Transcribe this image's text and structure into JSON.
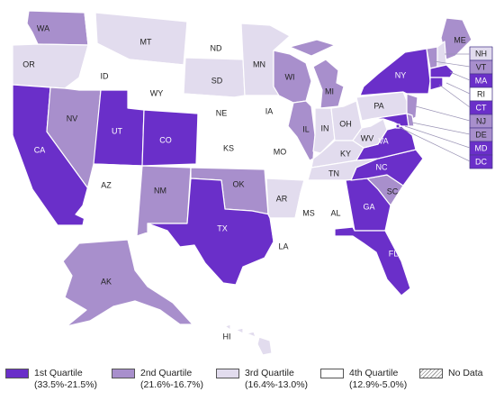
{
  "colors": {
    "q1": "#6a2fc9",
    "q2": "#a88fcc",
    "q3": "#e2dcee",
    "q4": "#ffffff",
    "border": "#9a93b5"
  },
  "states": {
    "WA": {
      "label": "WA",
      "q": "q2"
    },
    "OR": {
      "label": "OR",
      "q": "q3"
    },
    "CA": {
      "label": "CA",
      "q": "q1"
    },
    "ID": {
      "label": "ID",
      "q": "q4"
    },
    "NV": {
      "label": "NV",
      "q": "q2"
    },
    "MT": {
      "label": "MT",
      "q": "q3"
    },
    "WY": {
      "label": "WY",
      "q": "q4"
    },
    "UT": {
      "label": "UT",
      "q": "q1"
    },
    "AZ": {
      "label": "AZ",
      "q": "q4"
    },
    "CO": {
      "label": "CO",
      "q": "q1"
    },
    "NM": {
      "label": "NM",
      "q": "q2"
    },
    "ND": {
      "label": "ND",
      "q": "q4"
    },
    "SD": {
      "label": "SD",
      "q": "q3"
    },
    "NE": {
      "label": "NE",
      "q": "q4"
    },
    "KS": {
      "label": "KS",
      "q": "q4"
    },
    "OK": {
      "label": "OK",
      "q": "q2"
    },
    "TX": {
      "label": "TX",
      "q": "q1"
    },
    "MN": {
      "label": "MN",
      "q": "q3"
    },
    "IA": {
      "label": "IA",
      "q": "q4"
    },
    "MO": {
      "label": "MO",
      "q": "q4"
    },
    "AR": {
      "label": "AR",
      "q": "q3"
    },
    "LA": {
      "label": "LA",
      "q": "q4"
    },
    "WI": {
      "label": "WI",
      "q": "q2"
    },
    "IL": {
      "label": "IL",
      "q": "q2"
    },
    "MI": {
      "label": "MI",
      "q": "q2"
    },
    "IN": {
      "label": "IN",
      "q": "q3"
    },
    "OH": {
      "label": "OH",
      "q": "q3"
    },
    "KY": {
      "label": "KY",
      "q": "q3"
    },
    "TN": {
      "label": "TN",
      "q": "q3"
    },
    "MS": {
      "label": "MS",
      "q": "q4"
    },
    "AL": {
      "label": "AL",
      "q": "q4"
    },
    "GA": {
      "label": "GA",
      "q": "q1"
    },
    "FL": {
      "label": "FL",
      "q": "q1"
    },
    "SC": {
      "label": "SC",
      "q": "q2"
    },
    "NC": {
      "label": "NC",
      "q": "q1"
    },
    "VA": {
      "label": "VA",
      "q": "q1"
    },
    "WV": {
      "label": "WV",
      "q": "q3"
    },
    "PA": {
      "label": "PA",
      "q": "q3"
    },
    "NY": {
      "label": "NY",
      "q": "q1"
    },
    "ME": {
      "label": "ME",
      "q": "q2"
    },
    "AK": {
      "label": "AK",
      "q": "q2"
    },
    "HI": {
      "label": "HI",
      "q": "q3"
    },
    "NH": {
      "label": "NH",
      "q": "q3"
    },
    "VT": {
      "label": "VT",
      "q": "q2"
    },
    "MA": {
      "label": "MA",
      "q": "q1"
    },
    "RI": {
      "label": "RI",
      "q": "q4"
    },
    "CT": {
      "label": "CT",
      "q": "q1"
    },
    "NJ": {
      "label": "NJ",
      "q": "q2"
    },
    "DE": {
      "label": "DE",
      "q": "q2"
    },
    "MD": {
      "label": "MD",
      "q": "q1"
    },
    "DC": {
      "label": "DC",
      "q": "q1"
    }
  },
  "legend": [
    {
      "key": "q1",
      "name": "1st Quartile",
      "range": "(33.5%-21.5%)"
    },
    {
      "key": "q2",
      "name": "2nd Quartile",
      "range": "(21.6%-16.7%)"
    },
    {
      "key": "q3",
      "name": "3rd Quartile",
      "range": "(16.4%-13.0%)"
    },
    {
      "key": "q4",
      "name": "4th Quartile",
      "range": "(12.9%-5.0%)"
    },
    {
      "key": "nodata",
      "name": "No Data",
      "range": ""
    }
  ]
}
